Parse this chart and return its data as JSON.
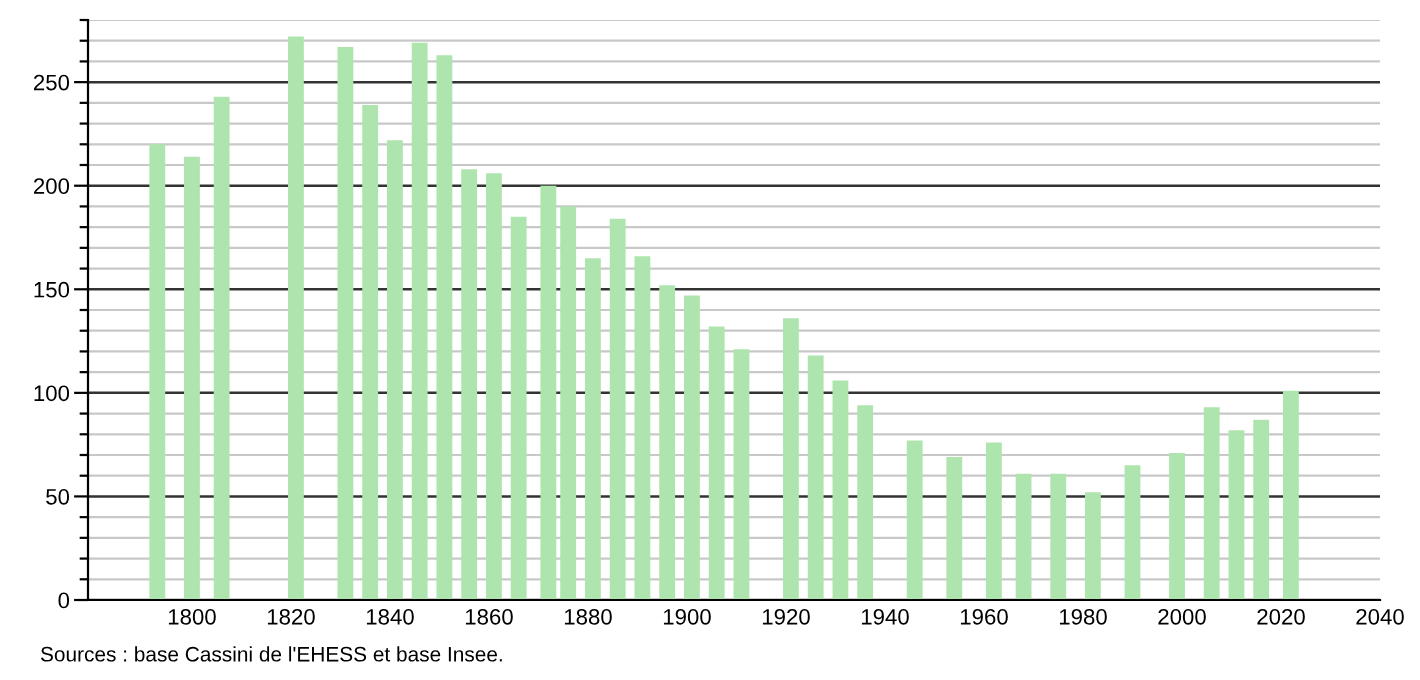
{
  "chart_data": {
    "type": "bar",
    "color": "#aee5ae",
    "x": [
      1793,
      1800,
      1806,
      1821,
      1831,
      1836,
      1841,
      1846,
      1851,
      1856,
      1861,
      1866,
      1872,
      1876,
      1881,
      1886,
      1891,
      1896,
      1901,
      1906,
      1911,
      1921,
      1926,
      1931,
      1936,
      1946,
      1954,
      1962,
      1968,
      1975,
      1982,
      1990,
      1999,
      2006,
      2011,
      2016,
      2022
    ],
    "values": [
      220,
      214,
      243,
      272,
      267,
      239,
      222,
      269,
      263,
      208,
      206,
      185,
      200,
      190,
      165,
      184,
      166,
      152,
      147,
      132,
      121,
      136,
      118,
      106,
      94,
      77,
      69,
      76,
      61,
      61,
      52,
      65,
      71,
      93,
      82,
      87,
      101
    ],
    "xlim": [
      1779,
      2040
    ],
    "xticks": [
      1800,
      1820,
      1840,
      1860,
      1880,
      1900,
      1920,
      1940,
      1960,
      1980,
      2000,
      2020,
      2040
    ],
    "ylim": [
      0,
      280
    ],
    "yticks": [
      0,
      {
        "value": 10,
        "label": null
      },
      {
        "value": 20,
        "label": null
      },
      {
        "value": 30,
        "label": null
      },
      {
        "value": 40,
        "label": null
      },
      50,
      {
        "value": 60,
        "label": null
      },
      {
        "value": 70,
        "label": null
      },
      {
        "value": 80,
        "label": null
      },
      {
        "value": 90,
        "label": null
      },
      100,
      {
        "value": 110,
        "label": null
      },
      {
        "value": 120,
        "label": null
      },
      {
        "value": 130,
        "label": null
      },
      {
        "value": 140,
        "label": null
      },
      150,
      {
        "value": 160,
        "label": null
      },
      {
        "value": 170,
        "label": null
      },
      {
        "value": 180,
        "label": null
      },
      {
        "value": 190,
        "label": null
      },
      200,
      {
        "value": 210,
        "label": null
      },
      {
        "value": 220,
        "label": null
      },
      {
        "value": 230,
        "label": null
      },
      {
        "value": 240,
        "label": null
      },
      250,
      {
        "value": 260,
        "label": null
      },
      {
        "value": 270,
        "label": null
      },
      {
        "value": 280,
        "label": null
      }
    ],
    "grid": "y",
    "annotations": [
      "Sources : base Cassini de l'EHESS et base Insee."
    ]
  }
}
